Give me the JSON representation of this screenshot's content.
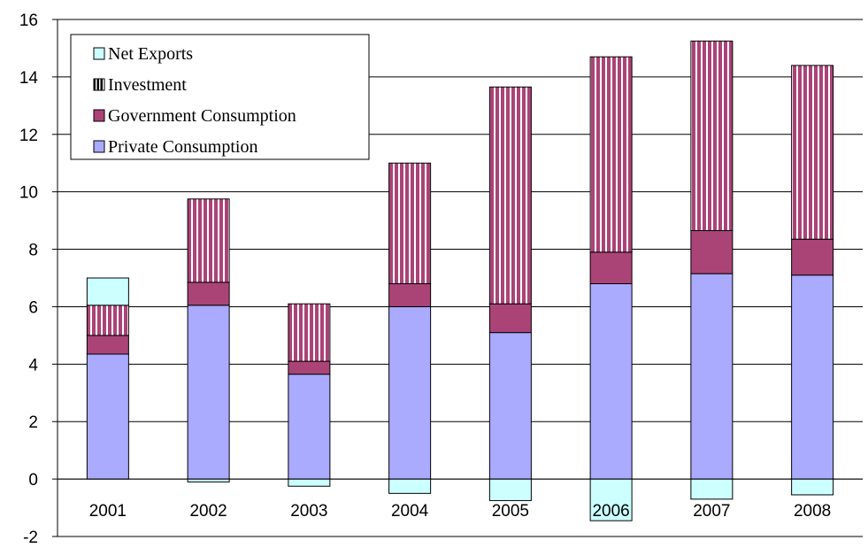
{
  "chart_data": {
    "type": "bar",
    "stacked": true,
    "categories": [
      "2001",
      "2002",
      "2003",
      "2004",
      "2005",
      "2006",
      "2007",
      "2008"
    ],
    "ylim": [
      -2,
      16
    ],
    "yticks": [
      -2,
      0,
      2,
      4,
      6,
      8,
      10,
      12,
      14,
      16
    ],
    "grid": true,
    "legend_position": "top-left",
    "series": [
      {
        "name": "Private Consumption",
        "color": "#aaaaff",
        "pattern": "solid",
        "values": [
          4.35,
          6.05,
          3.65,
          6.0,
          5.1,
          6.8,
          7.15,
          7.1
        ]
      },
      {
        "name": "Government Consumption",
        "color": "#aa4477",
        "pattern": "solid",
        "values": [
          0.65,
          0.8,
          0.45,
          0.8,
          1.0,
          1.1,
          1.5,
          1.25
        ]
      },
      {
        "name": "Investment",
        "color": "#aa4477",
        "pattern": "vertical-stripes",
        "values": [
          1.05,
          2.9,
          2.0,
          4.2,
          7.55,
          6.8,
          6.6,
          6.05
        ]
      },
      {
        "name": "Net Exports",
        "color": "#ccffff",
        "pattern": "solid",
        "values": [
          0.95,
          -0.1,
          -0.25,
          -0.5,
          -0.75,
          -1.45,
          -0.7,
          -0.55
        ]
      }
    ],
    "legend_order": [
      "Net Exports",
      "Investment",
      "Government Consumption",
      "Private Consumption"
    ]
  }
}
